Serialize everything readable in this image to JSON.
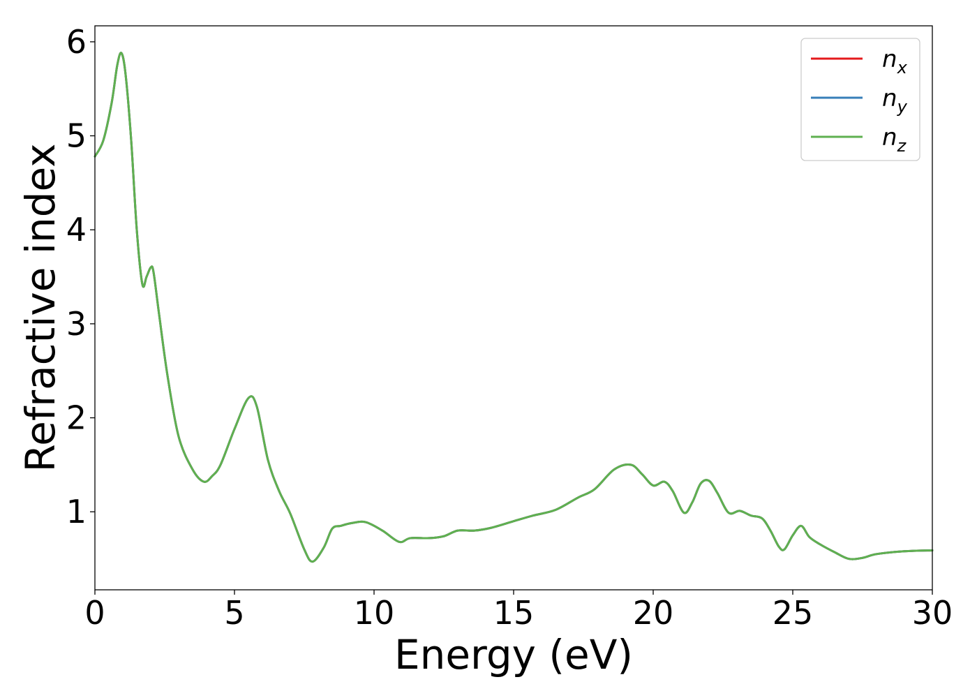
{
  "chart_data": {
    "type": "line",
    "xlabel": "Energy (eV)",
    "ylabel": "Refractive index",
    "xlim": [
      0,
      30
    ],
    "ylim": [
      0.17,
      6.17
    ],
    "xticks": [
      "0",
      "5",
      "10",
      "15",
      "20",
      "25",
      "30"
    ],
    "yticks": [
      "1",
      "2",
      "3",
      "4",
      "5",
      "6"
    ],
    "grid": false,
    "legend_position": "top-right",
    "x": [
      0,
      0.3,
      0.6,
      0.8,
      0.95,
      1.1,
      1.3,
      1.5,
      1.7,
      1.85,
      2.0,
      2.1,
      2.3,
      2.6,
      3.0,
      3.5,
      3.9,
      4.2,
      4.5,
      5.0,
      5.5,
      5.8,
      6.2,
      6.6,
      7.0,
      7.5,
      7.8,
      8.2,
      8.5,
      8.8,
      9.2,
      9.7,
      10.3,
      10.9,
      11.3,
      12.0,
      12.5,
      13.0,
      13.6,
      14.2,
      15.0,
      15.7,
      16.5,
      17.3,
      17.9,
      18.6,
      19.2,
      19.6,
      20.0,
      20.4,
      20.7,
      21.1,
      21.4,
      21.7,
      22.0,
      22.3,
      22.7,
      23.1,
      23.5,
      23.9,
      24.2,
      24.5,
      24.7,
      25.0,
      25.3,
      25.6,
      26.0,
      26.5,
      27.0,
      27.5,
      28.0,
      29.0,
      30.0
    ],
    "series": [
      {
        "name": "n",
        "sub": "x",
        "color": "#e41a1c",
        "values": [
          4.78,
          4.95,
          5.35,
          5.75,
          5.88,
          5.65,
          4.95,
          4.0,
          3.42,
          3.5,
          3.6,
          3.55,
          3.1,
          2.45,
          1.8,
          1.45,
          1.32,
          1.38,
          1.5,
          1.88,
          2.21,
          2.12,
          1.55,
          1.22,
          0.98,
          0.6,
          0.47,
          0.62,
          0.82,
          0.85,
          0.88,
          0.89,
          0.8,
          0.68,
          0.72,
          0.72,
          0.74,
          0.8,
          0.8,
          0.83,
          0.9,
          0.96,
          1.02,
          1.15,
          1.24,
          1.45,
          1.5,
          1.4,
          1.28,
          1.32,
          1.22,
          0.99,
          1.1,
          1.3,
          1.33,
          1.2,
          0.99,
          1.01,
          0.96,
          0.93,
          0.8,
          0.63,
          0.6,
          0.75,
          0.85,
          0.73,
          0.65,
          0.57,
          0.5,
          0.51,
          0.55,
          0.58,
          0.59
        ]
      },
      {
        "name": "n",
        "sub": "y",
        "color": "#377eb8",
        "values": [
          4.78,
          4.95,
          5.35,
          5.75,
          5.88,
          5.65,
          4.95,
          4.0,
          3.42,
          3.5,
          3.6,
          3.55,
          3.1,
          2.45,
          1.8,
          1.45,
          1.32,
          1.38,
          1.5,
          1.88,
          2.21,
          2.12,
          1.55,
          1.22,
          0.98,
          0.6,
          0.47,
          0.62,
          0.82,
          0.85,
          0.88,
          0.89,
          0.8,
          0.68,
          0.72,
          0.72,
          0.74,
          0.8,
          0.8,
          0.83,
          0.9,
          0.96,
          1.02,
          1.15,
          1.24,
          1.45,
          1.5,
          1.4,
          1.28,
          1.32,
          1.22,
          0.99,
          1.1,
          1.3,
          1.33,
          1.2,
          0.99,
          1.01,
          0.96,
          0.93,
          0.8,
          0.63,
          0.6,
          0.75,
          0.85,
          0.73,
          0.65,
          0.57,
          0.5,
          0.51,
          0.55,
          0.58,
          0.59
        ]
      },
      {
        "name": "n",
        "sub": "z",
        "color": "#5fb050",
        "values": [
          4.78,
          4.95,
          5.35,
          5.75,
          5.88,
          5.65,
          4.95,
          4.0,
          3.42,
          3.5,
          3.6,
          3.55,
          3.1,
          2.45,
          1.8,
          1.45,
          1.32,
          1.38,
          1.5,
          1.88,
          2.21,
          2.12,
          1.55,
          1.22,
          0.98,
          0.6,
          0.47,
          0.62,
          0.82,
          0.85,
          0.88,
          0.89,
          0.8,
          0.68,
          0.72,
          0.72,
          0.74,
          0.8,
          0.8,
          0.83,
          0.9,
          0.96,
          1.02,
          1.15,
          1.24,
          1.45,
          1.5,
          1.4,
          1.28,
          1.32,
          1.22,
          0.99,
          1.1,
          1.3,
          1.33,
          1.2,
          0.99,
          1.01,
          0.96,
          0.93,
          0.8,
          0.63,
          0.6,
          0.75,
          0.85,
          0.73,
          0.65,
          0.57,
          0.5,
          0.51,
          0.55,
          0.58,
          0.59
        ]
      }
    ]
  }
}
